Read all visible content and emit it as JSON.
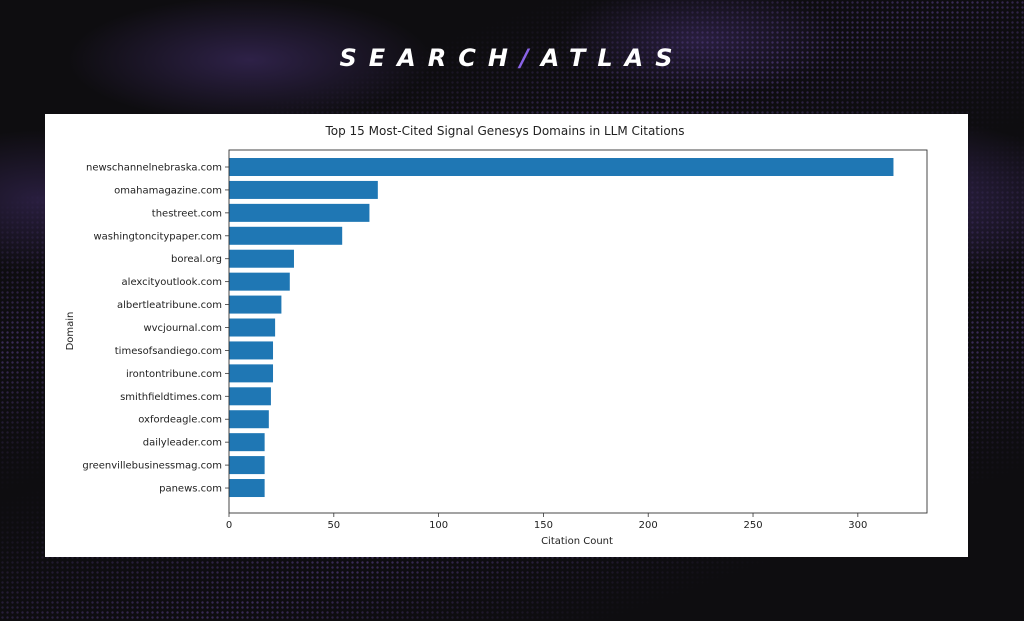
{
  "brand": {
    "left": "SEARCH",
    "slash": "/",
    "right": "ATLAS"
  },
  "chart_data": {
    "type": "bar",
    "orientation": "horizontal",
    "title": "Top 15 Most-Cited Signal Genesys Domains in LLM Citations",
    "xlabel": "Citation Count",
    "ylabel": "Domain",
    "xlim": [
      0,
      333
    ],
    "xticks": [
      0,
      50,
      100,
      150,
      200,
      250,
      300
    ],
    "grid": false,
    "bar_color": "#1f77b4",
    "categories": [
      "newschannelnebraska.com",
      "omahamagazine.com",
      "thestreet.com",
      "washingtoncitypaper.com",
      "boreal.org",
      "alexcityoutlook.com",
      "albertleatribune.com",
      "wvcjournal.com",
      "timesofsandiego.com",
      "irontontribune.com",
      "smithfieldtimes.com",
      "oxfordeagle.com",
      "dailyleader.com",
      "greenvillebusinessmag.com",
      "panews.com"
    ],
    "values": [
      317,
      71,
      67,
      54,
      31,
      29,
      25,
      22,
      21,
      21,
      20,
      19,
      17,
      17,
      17
    ]
  }
}
